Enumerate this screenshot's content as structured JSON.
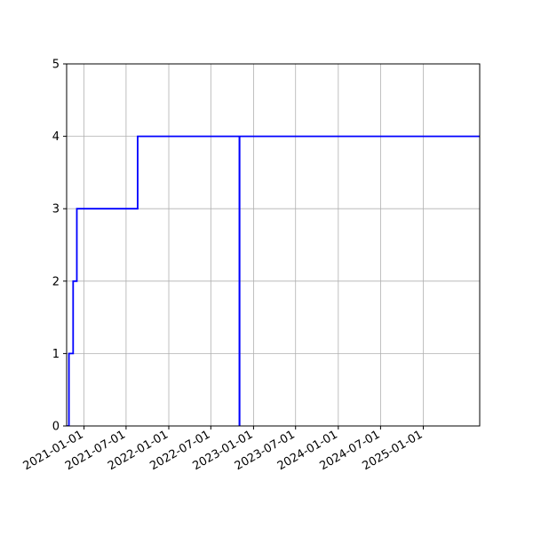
{
  "chart_data": {
    "type": "line",
    "drawstyle": "steps-post",
    "title": "",
    "xlabel": "",
    "ylabel": "",
    "grid": true,
    "line_color": "#0000ff",
    "xlim": [
      "2020-10-18",
      "2025-09-01"
    ],
    "ylim": [
      0,
      5
    ],
    "y_ticks": [
      0,
      1,
      2,
      3,
      4,
      5
    ],
    "x_ticks": [
      "2021-01-01",
      "2021-07-01",
      "2022-01-01",
      "2022-07-01",
      "2023-01-01",
      "2023-07-01",
      "2024-01-01",
      "2024-07-01",
      "2025-01-01"
    ],
    "x": [
      "2020-10-18",
      "2020-10-28",
      "2020-11-15",
      "2020-12-01",
      "2021-08-20",
      "2022-11-01",
      "2022-11-02",
      "2025-09-01"
    ],
    "y": [
      0,
      1,
      2,
      3,
      4,
      0,
      4,
      4
    ]
  }
}
